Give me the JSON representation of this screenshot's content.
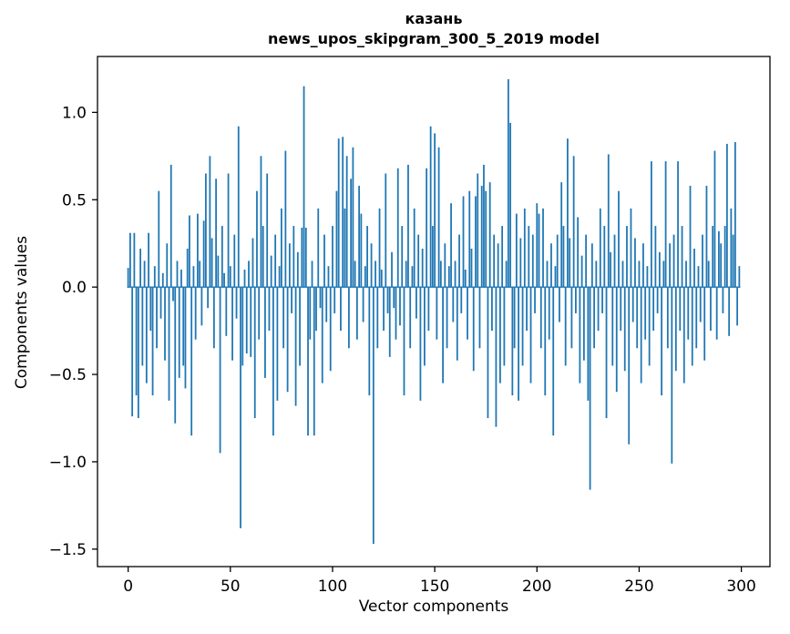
{
  "figure": {
    "title_line1": "казань",
    "title_line2": "news_upos_skipgram_300_5_2019 model",
    "xlabel": "Vector components",
    "ylabel": "Components values"
  },
  "chart_data": {
    "type": "bar",
    "title": "казань",
    "subtitle": "news_upos_skipgram_300_5_2019 model",
    "xlabel": "Vector components",
    "ylabel": "Components values",
    "bar_color": "#1f77b4",
    "axis_color": "#000000",
    "grid": false,
    "legend": "none",
    "xlim": [
      -15,
      314
    ],
    "ylim": [
      -1.6,
      1.32
    ],
    "x_ticks": [
      0,
      50,
      100,
      150,
      200,
      250,
      300
    ],
    "x_tick_labels": [
      "0",
      "50",
      "100",
      "150",
      "200",
      "250",
      "300"
    ],
    "y_ticks": [
      1.0,
      0.5,
      0.0,
      -0.5,
      -1.0,
      -1.5
    ],
    "y_tick_labels": [
      "1.0",
      "0.5",
      "0.0",
      "−0.5",
      "−1.0",
      "−1.5"
    ],
    "values": [
      0.11,
      0.31,
      -0.74,
      0.31,
      -0.62,
      -0.75,
      0.22,
      -0.45,
      0.15,
      -0.55,
      0.31,
      -0.25,
      -0.62,
      0.12,
      -0.35,
      0.55,
      -0.18,
      0.08,
      -0.42,
      0.25,
      -0.65,
      0.7,
      -0.08,
      -0.78,
      0.15,
      -0.52,
      0.1,
      -0.45,
      -0.58,
      0.22,
      0.41,
      -0.85,
      0.12,
      -0.3,
      0.42,
      0.15,
      -0.22,
      0.38,
      0.65,
      -0.12,
      0.75,
      0.28,
      -0.35,
      0.62,
      0.18,
      -0.95,
      0.35,
      0.08,
      -0.28,
      0.65,
      0.12,
      -0.42,
      0.3,
      -0.18,
      0.92,
      -1.38,
      -0.45,
      0.1,
      -0.38,
      0.15,
      -0.4,
      0.28,
      -0.75,
      0.55,
      -0.3,
      0.75,
      0.35,
      -0.52,
      0.65,
      -0.25,
      0.18,
      -0.85,
      0.3,
      -0.65,
      0.12,
      0.45,
      -0.35,
      0.78,
      -0.6,
      0.25,
      -0.15,
      0.35,
      -0.68,
      0.2,
      -0.45,
      0.34,
      1.15,
      0.34,
      -0.85,
      -0.3,
      0.15,
      -0.85,
      -0.25,
      0.45,
      -0.12,
      -0.55,
      0.3,
      -0.2,
      0.12,
      -0.48,
      0.35,
      -0.15,
      0.55,
      0.85,
      -0.25,
      0.86,
      0.45,
      0.75,
      -0.35,
      0.62,
      0.8,
      0.15,
      -0.3,
      0.58,
      0.42,
      -0.2,
      0.12,
      0.35,
      -0.62,
      0.25,
      -1.47,
      0.15,
      -0.35,
      0.45,
      0.1,
      -0.25,
      0.65,
      -0.15,
      -0.4,
      0.2,
      -0.12,
      -0.3,
      0.68,
      -0.22,
      0.35,
      -0.62,
      0.15,
      0.7,
      -0.35,
      0.12,
      0.45,
      -0.18,
      0.3,
      -0.65,
      0.22,
      -0.45,
      0.68,
      -0.25,
      0.92,
      0.35,
      0.88,
      -0.3,
      0.8,
      0.15,
      -0.55,
      0.25,
      -0.35,
      0.12,
      0.48,
      -0.2,
      0.15,
      -0.42,
      0.3,
      -0.15,
      0.52,
      0.1,
      -0.3,
      0.55,
      0.22,
      -0.48,
      0.52,
      0.65,
      -0.35,
      0.58,
      0.7,
      0.55,
      -0.75,
      0.6,
      -0.25,
      0.3,
      -0.8,
      0.25,
      -0.55,
      0.35,
      -0.45,
      0.15,
      1.19,
      0.94,
      -0.62,
      -0.35,
      0.42,
      -0.65,
      0.28,
      -0.45,
      0.45,
      -0.25,
      0.35,
      -0.55,
      0.3,
      -0.15,
      0.48,
      0.42,
      -0.35,
      0.45,
      -0.62,
      0.15,
      -0.3,
      0.25,
      -0.85,
      0.12,
      0.3,
      -0.2,
      0.6,
      0.35,
      -0.45,
      0.85,
      0.28,
      -0.35,
      0.75,
      -0.15,
      0.4,
      -0.55,
      0.18,
      -0.42,
      0.3,
      -0.65,
      -1.16,
      0.25,
      -0.35,
      0.15,
      -0.25,
      0.45,
      -0.15,
      0.35,
      -0.75,
      0.76,
      0.2,
      -0.45,
      0.3,
      -0.6,
      0.55,
      -0.25,
      0.15,
      -0.48,
      0.35,
      -0.9,
      0.45,
      -0.2,
      0.28,
      -0.35,
      0.15,
      -0.55,
      0.25,
      -0.3,
      0.12,
      -0.45,
      0.72,
      -0.25,
      0.35,
      -0.15,
      0.2,
      -0.62,
      0.15,
      0.72,
      -0.35,
      0.25,
      -1.01,
      0.3,
      -0.48,
      0.72,
      -0.25,
      0.35,
      -0.55,
      0.15,
      -0.3,
      0.58,
      -0.45,
      0.22,
      -0.35,
      0.12,
      -0.2,
      0.3,
      -0.42,
      0.58,
      0.15,
      -0.25,
      0.35,
      0.78,
      -0.3,
      0.32,
      0.25,
      -0.15,
      0.35,
      0.82,
      -0.28,
      0.45,
      0.3,
      0.83,
      -0.22,
      0.12
    ]
  }
}
